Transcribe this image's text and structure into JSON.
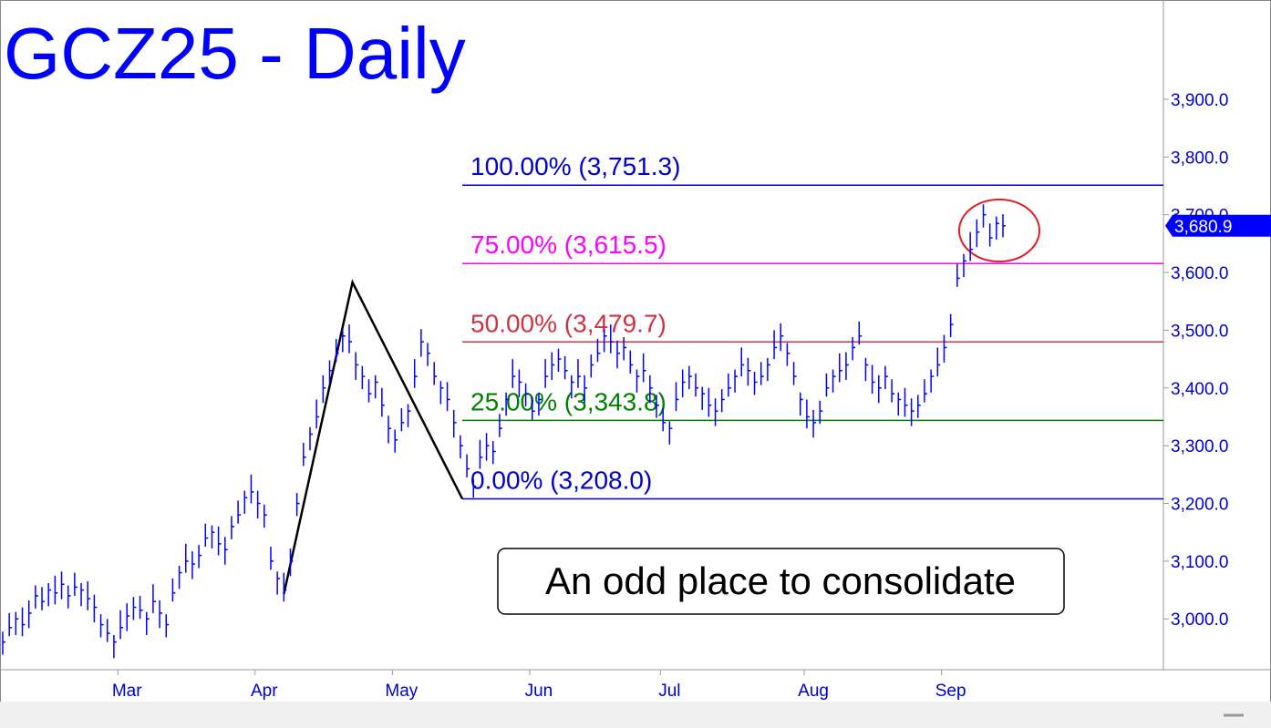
{
  "chart_data": {
    "type": "ohlc",
    "title": "GCZ25 - Daily",
    "annotation": "An odd place to consolidate",
    "color": "#0000ff",
    "categories": [
      null,
      null,
      null,
      null,
      null,
      null,
      null,
      null,
      null,
      null,
      null,
      null,
      null,
      null,
      null,
      null,
      null,
      null,
      null,
      "Mar",
      null,
      null,
      null,
      null,
      null,
      null,
      null,
      null,
      null,
      null,
      null,
      null,
      null,
      null,
      null,
      null,
      null,
      null,
      null,
      null,
      "Apr",
      null,
      null,
      null,
      null,
      null,
      null,
      null,
      null,
      null,
      null,
      null,
      null,
      null,
      null,
      null,
      null,
      null,
      null,
      null,
      null,
      "May",
      null,
      null,
      null,
      null,
      null,
      null,
      null,
      null,
      null,
      null,
      null,
      null,
      null,
      null,
      null,
      null,
      null,
      null,
      null,
      null,
      "Jun",
      null,
      null,
      null,
      null,
      null,
      null,
      null,
      null,
      null,
      null,
      null,
      null,
      null,
      null,
      null,
      null,
      null,
      null,
      null,
      "Jul",
      null,
      null,
      null,
      null,
      null,
      null,
      null,
      null,
      null,
      null,
      null,
      null,
      null,
      null,
      null,
      null,
      null,
      null,
      null,
      null,
      null,
      "Aug",
      null,
      null,
      null,
      null,
      null,
      null,
      null,
      null,
      null,
      null,
      null,
      null,
      null,
      null,
      null,
      null,
      null,
      null,
      null,
      null,
      "Sep",
      null,
      null,
      null,
      null,
      null,
      null,
      null,
      null
    ],
    "high": [
      2978,
      3010,
      3012,
      3020,
      3032,
      3058,
      3055,
      3062,
      3075,
      3082,
      3058,
      3080,
      3062,
      3065,
      3042,
      3008,
      3000,
      2972,
      3015,
      3027,
      3038,
      3040,
      3012,
      3060,
      3032,
      3008,
      3070,
      3092,
      3130,
      3117,
      3128,
      3165,
      3162,
      3160,
      3142,
      3178,
      3205,
      3222,
      3250,
      3222,
      3198,
      3125,
      3082,
      3080,
      3122,
      3218,
      3305,
      3332,
      3380,
      3422,
      3448,
      3485,
      3502,
      3510,
      3462,
      3438,
      3415,
      3422,
      3400,
      3352,
      3328,
      3365,
      3372,
      3450,
      3502,
      3478,
      3445,
      3412,
      3410,
      3362,
      3318,
      3285,
      3242,
      3310,
      3322,
      3308,
      3355,
      3392,
      3450,
      3432,
      3408,
      3385,
      3392,
      3450,
      3462,
      3468,
      3455,
      3422,
      3450,
      3422,
      3458,
      3485,
      3502,
      3510,
      3482,
      3488,
      3465,
      3432,
      3460,
      3422,
      3388,
      3365,
      3342,
      3410,
      3432,
      3438,
      3425,
      3402,
      3400,
      3382,
      3398,
      3425,
      3432,
      3470,
      3452,
      3428,
      3445,
      3452,
      3500,
      3512,
      3478,
      3445,
      3392,
      3380,
      3362,
      3378,
      3425,
      3432,
      3460,
      3462,
      3488,
      3515,
      3452,
      3440,
      3422,
      3438,
      3415,
      3392,
      3400,
      3382,
      3388,
      3415,
      3432,
      3470,
      3492,
      3528,
      3615,
      3632,
      3670,
      3692,
      3718,
      3685,
      3697,
      3701
    ],
    "low": [
      2938,
      2970,
      2972,
      2970,
      2984,
      3018,
      3015,
      3022,
      3025,
      3034,
      3018,
      3040,
      3022,
      3015,
      2994,
      2968,
      2960,
      2932,
      2965,
      2979,
      2998,
      3000,
      2972,
      3010,
      2984,
      2968,
      3030,
      3052,
      3080,
      3069,
      3088,
      3125,
      3122,
      3110,
      3094,
      3138,
      3165,
      3182,
      3200,
      3174,
      3158,
      3085,
      3042,
      3030,
      3074,
      3178,
      3265,
      3292,
      3330,
      3374,
      3408,
      3445,
      3462,
      3460,
      3414,
      3398,
      3375,
      3382,
      3350,
      3304,
      3288,
      3325,
      3332,
      3400,
      3454,
      3438,
      3405,
      3372,
      3360,
      3314,
      3278,
      3245,
      3210,
      3260,
      3274,
      3268,
      3315,
      3352,
      3400,
      3384,
      3368,
      3345,
      3352,
      3400,
      3414,
      3428,
      3415,
      3382,
      3400,
      3374,
      3418,
      3445,
      3462,
      3460,
      3434,
      3448,
      3425,
      3392,
      3410,
      3374,
      3348,
      3325,
      3302,
      3360,
      3384,
      3398,
      3385,
      3362,
      3350,
      3334,
      3358,
      3385,
      3392,
      3420,
      3404,
      3388,
      3405,
      3412,
      3450,
      3464,
      3438,
      3405,
      3352,
      3330,
      3314,
      3338,
      3385,
      3392,
      3410,
      3414,
      3448,
      3475,
      3412,
      3390,
      3374,
      3398,
      3375,
      3352,
      3350,
      3334,
      3348,
      3375,
      3392,
      3420,
      3444,
      3488,
      3575,
      3592,
      3620,
      3644,
      3678,
      3645,
      3657,
      3661
    ],
    "close": [
      2960,
      2985,
      3000,
      2990,
      3010,
      3040,
      3030,
      3050,
      3045,
      3060,
      3040,
      3055,
      3050,
      3035,
      3020,
      2990,
      2975,
      2960,
      2985,
      3005,
      3020,
      3015,
      3000,
      3030,
      3010,
      2990,
      3045,
      3080,
      3100,
      3095,
      3110,
      3140,
      3150,
      3130,
      3120,
      3160,
      3180,
      3210,
      3220,
      3200,
      3180,
      3100,
      3070,
      3050,
      3100,
      3200,
      3280,
      3320,
      3350,
      3400,
      3430,
      3460,
      3490,
      3480,
      3440,
      3420,
      3390,
      3410,
      3370,
      3330,
      3310,
      3340,
      3360,
      3420,
      3480,
      3460,
      3420,
      3400,
      3380,
      3340,
      3300,
      3260,
      3230,
      3280,
      3300,
      3290,
      3330,
      3380,
      3420,
      3410,
      3390,
      3360,
      3380,
      3420,
      3440,
      3450,
      3430,
      3410,
      3420,
      3400,
      3440,
      3460,
      3490,
      3480,
      3460,
      3470,
      3440,
      3420,
      3430,
      3400,
      3370,
      3340,
      3330,
      3380,
      3410,
      3420,
      3400,
      3390,
      3370,
      3360,
      3380,
      3400,
      3420,
      3440,
      3430,
      3410,
      3420,
      3440,
      3470,
      3490,
      3460,
      3420,
      3380,
      3350,
      3340,
      3360,
      3400,
      3420,
      3430,
      3440,
      3470,
      3490,
      3440,
      3410,
      3400,
      3420,
      3390,
      3380,
      3370,
      3360,
      3370,
      3390,
      3420,
      3440,
      3470,
      3510,
      3590,
      3620,
      3640,
      3670,
      3700,
      3660,
      3685,
      3680.9
    ],
    "last_price": {
      "value": 3680.9,
      "label": "3,680.9"
    },
    "swing_points": [
      {
        "x": 43,
        "value": 3043
      },
      {
        "x": 53.5,
        "value": 3583
      },
      {
        "x": 70.3,
        "value": 3208
      }
    ],
    "levels": [
      {
        "label": "100.00% (3,751.3)",
        "value": 3751.3,
        "color": "#0000cc"
      },
      {
        "label": "75.00% (3,615.5)",
        "value": 3615.5,
        "color": "#ff00ff"
      },
      {
        "label": "50.00% (3,479.7)",
        "value": 3479.7,
        "color": "#cc3344"
      },
      {
        "label": "25.00% (3,343.8)",
        "value": 3343.8,
        "color": "#008000"
      },
      {
        "label": "0.00% (3,208.0)",
        "value": 3208.0,
        "color": "#0000cc"
      }
    ],
    "ylim": [
      2912,
      4072
    ],
    "yticks": [
      {
        "value": 3000,
        "label": "3,000.0"
      },
      {
        "value": 3100,
        "label": "3,100.0"
      },
      {
        "value": 3200,
        "label": "3,200.0"
      },
      {
        "value": 3300,
        "label": "3,300.0"
      },
      {
        "value": 3400,
        "label": "3,400.0"
      },
      {
        "value": 3500,
        "label": "3,500.0"
      },
      {
        "value": 3600,
        "label": "3,600.0"
      },
      {
        "value": 3700,
        "label": "3,700.0"
      },
      {
        "value": 3800,
        "label": "3,800.0"
      },
      {
        "value": 3900,
        "label": "3,900.0"
      }
    ]
  }
}
